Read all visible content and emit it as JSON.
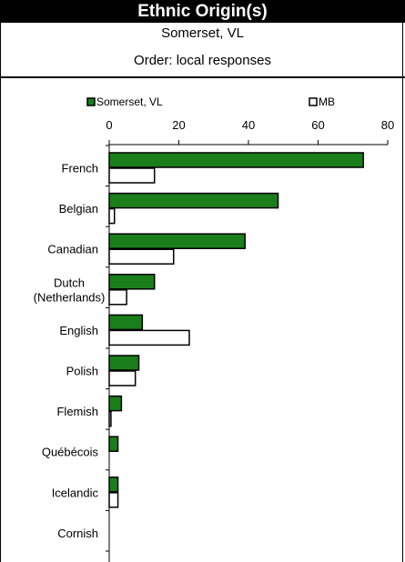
{
  "title": "Ethnic Origin(s)",
  "subtitle_location": "Somerset, VL",
  "subtitle_order": "Order: local responses",
  "colors": {
    "series1": "#1a7f1a",
    "series2": "#ffffff",
    "stroke": "#000000"
  },
  "chart_data": {
    "type": "bar",
    "orientation": "horizontal",
    "categories": [
      "French",
      "Belgian",
      "Canadian",
      "Dutch (Netherlands)",
      "English",
      "Polish",
      "Flemish",
      "Québécois",
      "Icelandic",
      "Cornish"
    ],
    "category_lines": [
      [
        "French"
      ],
      [
        "Belgian"
      ],
      [
        "Canadian"
      ],
      [
        "Dutch",
        "(Netherlands)"
      ],
      [
        "English"
      ],
      [
        "Polish"
      ],
      [
        "Flemish"
      ],
      [
        "Québécois"
      ],
      [
        "Icelandic"
      ],
      [
        "Cornish"
      ]
    ],
    "series": [
      {
        "name": "Somerset, VL",
        "values": [
          73,
          48.5,
          39,
          13,
          9.5,
          8.5,
          3.5,
          2.5,
          2.5,
          0
        ]
      },
      {
        "name": "MB",
        "values": [
          13,
          1.5,
          18.5,
          5,
          23,
          7.5,
          0.5,
          0,
          2.5,
          0
        ]
      }
    ],
    "xlim": [
      0,
      80
    ],
    "xticks": [
      0,
      20,
      40,
      60,
      80
    ],
    "legend_position": "top",
    "grid": false
  }
}
